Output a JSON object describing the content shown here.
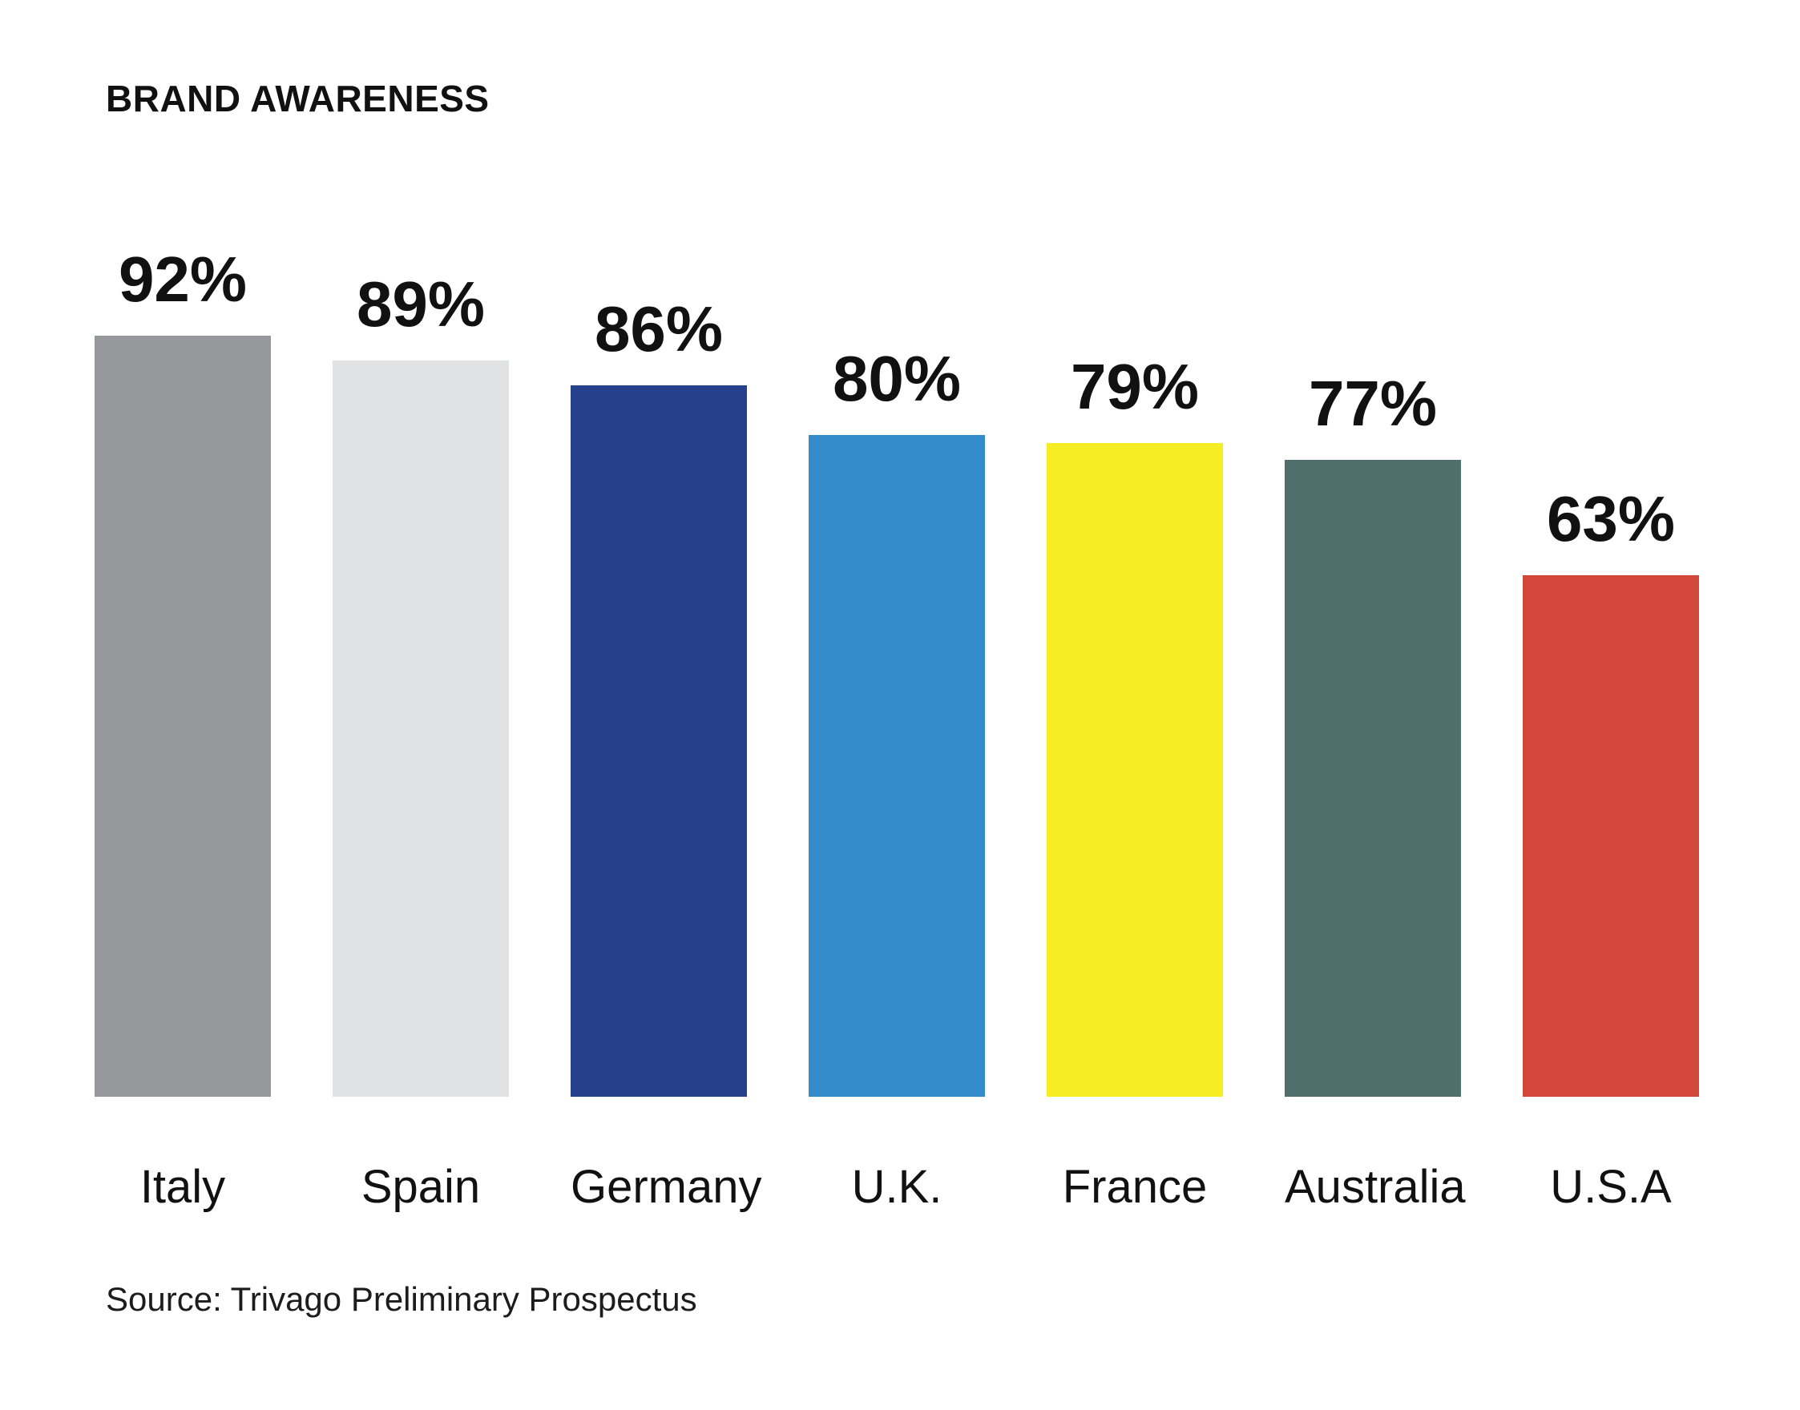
{
  "chart_data": {
    "type": "bar",
    "title": "BRAND AWARENESS",
    "categories": [
      "Italy",
      "Spain",
      "Germany",
      "U.K.",
      "France",
      "Australia",
      "U.S.A"
    ],
    "values": [
      92,
      89,
      86,
      80,
      79,
      77,
      63
    ],
    "value_labels": [
      "92%",
      "89%",
      "86%",
      "80%",
      "79%",
      "77%",
      "63%"
    ],
    "bar_colors": [
      "#97989B",
      "#E0E2E4",
      "#25418D",
      "#348BC9",
      "#F6EE22",
      "#4F6F6D",
      "#D2463C"
    ],
    "xlabel": "",
    "ylabel": "",
    "ylim": [
      0,
      100
    ],
    "grid": false,
    "legend": false,
    "background_color": "#FFFFFF",
    "text_color": "#111111",
    "source": "Source: Trivago Preliminary Prospectus"
  }
}
